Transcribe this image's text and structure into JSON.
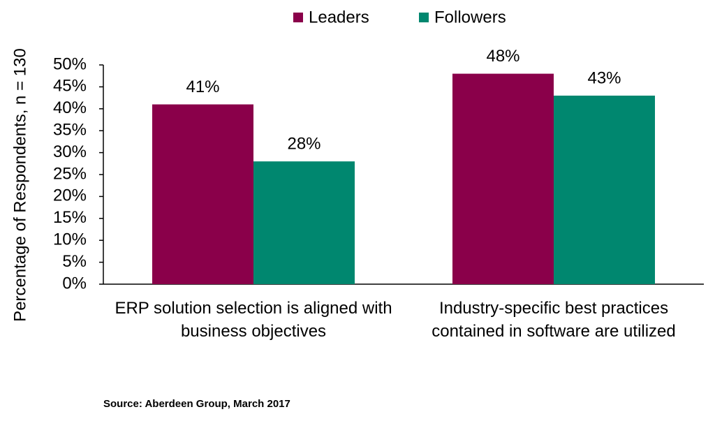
{
  "chart_data": {
    "type": "bar",
    "y_label": "Percentage of Respondents, n = 130",
    "categories": [
      "ERP solution selection is aligned with business objectives",
      "Industry-specific best practices contained in software are utilized"
    ],
    "series": [
      {
        "name": "Leaders",
        "color": "#8a004a",
        "values": [
          41,
          48
        ],
        "value_labels": [
          "41%",
          "48%"
        ]
      },
      {
        "name": "Followers",
        "color": "#00876f",
        "values": [
          28,
          43
        ],
        "value_labels": [
          "28%",
          "43%"
        ]
      }
    ],
    "ylim": [
      0,
      50
    ],
    "yticks": [
      {
        "value": 0,
        "label": "0%"
      },
      {
        "value": 5,
        "label": "5%"
      },
      {
        "value": 10,
        "label": "10%"
      },
      {
        "value": 15,
        "label": "15%"
      },
      {
        "value": 20,
        "label": "20%"
      },
      {
        "value": 25,
        "label": "25%"
      },
      {
        "value": 30,
        "label": "30%"
      },
      {
        "value": 35,
        "label": "35%"
      },
      {
        "value": 40,
        "label": "40%"
      },
      {
        "value": 45,
        "label": "45%"
      },
      {
        "value": 50,
        "label": "50%"
      }
    ],
    "grid": false,
    "legend": "top",
    "source": "Source: Aberdeen Group, March 2017"
  }
}
